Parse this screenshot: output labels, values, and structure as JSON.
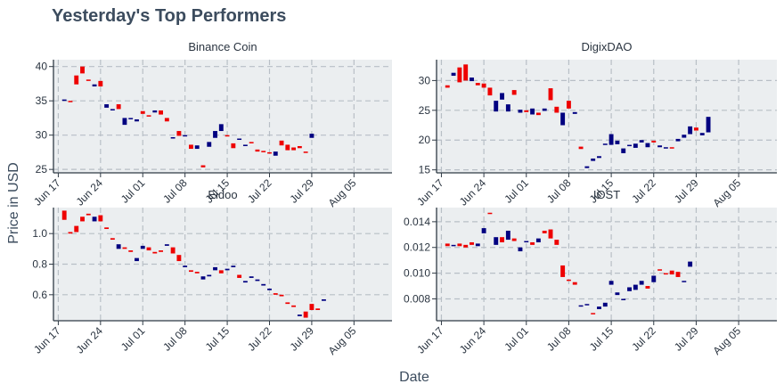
{
  "title": "Yesterday's Top Performers",
  "xlabel": "Date",
  "ylabel": "Price in USD",
  "colors": {
    "up": "#000080",
    "down": "#ee0000",
    "panel_bg": "#ebeef0",
    "grid": "#b8bfc6",
    "axis": "#2f3a45",
    "title": "#3c4c5e"
  },
  "x_ticks": [
    "Jun 17",
    "Jun 24",
    "Jul 01",
    "Jul 08",
    "Jul 15",
    "Jul 22",
    "Jul 29",
    "Aug 05"
  ],
  "chart_data": [
    {
      "type": "candlestick",
      "name": "Binance Coin",
      "x_start": "2018-06-18",
      "ylim": [
        24.5,
        41
      ],
      "yticks": [
        "25",
        "30",
        "35",
        "40"
      ],
      "ytick_values": [
        25,
        30,
        35,
        40
      ],
      "grid": true,
      "candles": [
        [
          35.0,
          35.2
        ],
        [
          35.0,
          34.8
        ],
        [
          38.7,
          37.4
        ],
        [
          40.0,
          39.0
        ],
        [
          38.1,
          37.9
        ],
        [
          37.1,
          37.4
        ],
        [
          37.9,
          37.1
        ],
        [
          34.0,
          34.5
        ],
        [
          33.6,
          33.8
        ],
        [
          34.5,
          33.8
        ],
        [
          31.5,
          32.5
        ],
        [
          32.4,
          32.5
        ],
        [
          32.0,
          32.3
        ],
        [
          33.5,
          33.1
        ],
        [
          32.9,
          32.7
        ],
        [
          33.3,
          33.6
        ],
        [
          33.6,
          33.0
        ],
        [
          32.5,
          32.0
        ],
        [
          29.5,
          29.7
        ],
        [
          30.6,
          29.9
        ],
        [
          30.0,
          30.0
        ],
        [
          28.6,
          28.0
        ],
        [
          28.0,
          28.5
        ],
        [
          25.6,
          25.3
        ],
        [
          28.3,
          29.0
        ],
        [
          29.6,
          30.6
        ],
        [
          30.6,
          31.6
        ],
        [
          30.0,
          29.8
        ],
        [
          28.8,
          28.1
        ],
        [
          29.4,
          29.5
        ],
        [
          28.4,
          28.6
        ],
        [
          29.0,
          28.8
        ],
        [
          27.9,
          27.6
        ],
        [
          27.7,
          27.5
        ],
        [
          27.5,
          27.4
        ],
        [
          27.0,
          27.6
        ],
        [
          29.2,
          28.5
        ],
        [
          28.6,
          27.8
        ],
        [
          28.2,
          27.8
        ],
        [
          28.4,
          28.1
        ],
        [
          27.6,
          27.4
        ],
        [
          29.6,
          30.2
        ]
      ]
    },
    {
      "type": "candlestick",
      "name": "DigixDAO",
      "x_start": "2018-06-18",
      "ylim": [
        14.5,
        33.5
      ],
      "yticks": [
        "15",
        "20",
        "25",
        "30"
      ],
      "ytick_values": [
        15,
        20,
        25,
        30
      ],
      "grid": true,
      "candles": [
        [
          29.2,
          28.8
        ],
        [
          30.8,
          31.3
        ],
        [
          32.2,
          29.7
        ],
        [
          32.7,
          30.0
        ],
        [
          29.9,
          30.5
        ],
        [
          29.6,
          29.2
        ],
        [
          29.5,
          28.8
        ],
        [
          28.8,
          27.5
        ],
        [
          24.8,
          26.6
        ],
        [
          26.8,
          27.9
        ],
        [
          24.8,
          26.0
        ],
        [
          28.4,
          27.6
        ],
        [
          24.6,
          25.1
        ],
        [
          25.0,
          24.7
        ],
        [
          24.3,
          25.3
        ],
        [
          24.6,
          24.2
        ],
        [
          24.9,
          25.3
        ],
        [
          28.7,
          26.7
        ],
        [
          25.6,
          24.6
        ],
        [
          22.5,
          24.6
        ],
        [
          26.6,
          25.3
        ],
        [
          24.4,
          24.7
        ],
        [
          18.9,
          18.5
        ],
        [
          15.3,
          15.6
        ],
        [
          16.5,
          16.9
        ],
        [
          17.0,
          17.3
        ],
        [
          19.2,
          19.4
        ],
        [
          19.2,
          21.0
        ],
        [
          19.3,
          19.9
        ],
        [
          17.8,
          18.6
        ],
        [
          19.1,
          19.2
        ],
        [
          18.7,
          19.4
        ],
        [
          19.6,
          20.0
        ],
        [
          18.8,
          19.5
        ],
        [
          19.9,
          19.6
        ],
        [
          18.8,
          19.1
        ],
        [
          18.7,
          18.8
        ],
        [
          18.8,
          18.7
        ],
        [
          19.8,
          20.2
        ],
        [
          20.4,
          20.9
        ],
        [
          21.0,
          22.3
        ],
        [
          22.1,
          21.6
        ],
        [
          20.8,
          21.2
        ],
        [
          21.3,
          23.9
        ]
      ]
    },
    {
      "type": "candlestick",
      "name": "Eidoo",
      "x_start": "2018-06-18",
      "ylim": [
        0.43,
        1.17
      ],
      "yticks": [
        "0.6",
        "0.8",
        "1.0"
      ],
      "ytick_values": [
        0.6,
        0.8,
        1.0
      ],
      "grid": true,
      "candles": [
        [
          1.15,
          1.09
        ],
        [
          1.01,
          1.0
        ],
        [
          1.05,
          1.01
        ],
        [
          1.11,
          1.08
        ],
        [
          1.13,
          1.12
        ],
        [
          1.08,
          1.11
        ],
        [
          1.12,
          1.08
        ],
        [
          1.04,
          1.03
        ],
        [
          0.97,
          0.96
        ],
        [
          0.9,
          0.93
        ],
        [
          0.91,
          0.9
        ],
        [
          0.89,
          0.88
        ],
        [
          0.82,
          0.84
        ],
        [
          0.9,
          0.92
        ],
        [
          0.91,
          0.89
        ],
        [
          0.88,
          0.87
        ],
        [
          0.89,
          0.88
        ],
        [
          0.92,
          0.93
        ],
        [
          0.91,
          0.87
        ],
        [
          0.86,
          0.82
        ],
        [
          0.78,
          0.79
        ],
        [
          0.76,
          0.75
        ],
        [
          0.75,
          0.74
        ],
        [
          0.7,
          0.72
        ],
        [
          0.72,
          0.73
        ],
        [
          0.76,
          0.78
        ],
        [
          0.76,
          0.74
        ],
        [
          0.76,
          0.77
        ],
        [
          0.78,
          0.79
        ],
        [
          0.73,
          0.71
        ],
        [
          0.68,
          0.69
        ],
        [
          0.71,
          0.72
        ],
        [
          0.69,
          0.7
        ],
        [
          0.66,
          0.67
        ],
        [
          0.63,
          0.64
        ],
        [
          0.61,
          0.6
        ],
        [
          0.6,
          0.59
        ],
        [
          0.55,
          0.54
        ],
        [
          0.53,
          0.52
        ],
        [
          0.46,
          0.47
        ],
        [
          0.49,
          0.45
        ],
        [
          0.54,
          0.5
        ],
        [
          0.51,
          0.5
        ],
        [
          0.56,
          0.57
        ]
      ]
    },
    {
      "type": "candlestick",
      "name": "IOST",
      "x_start": "2018-06-18",
      "ylim": [
        0.0063,
        0.0151
      ],
      "yticks": [
        "0.008",
        "0.010",
        "0.012",
        "0.014"
      ],
      "ytick_values": [
        0.008,
        0.01,
        0.012,
        0.014
      ],
      "grid": true,
      "candles": [
        [
          0.0123,
          0.0121
        ],
        [
          0.0121,
          0.0122
        ],
        [
          0.0123,
          0.0121
        ],
        [
          0.0122,
          0.012
        ],
        [
          0.0124,
          0.0122
        ],
        [
          0.0121,
          0.0123
        ],
        [
          0.0131,
          0.0135
        ],
        [
          0.0147,
          0.0146
        ],
        [
          0.0122,
          0.0128
        ],
        [
          0.0128,
          0.0124
        ],
        [
          0.0126,
          0.0133
        ],
        [
          0.0127,
          0.0125
        ],
        [
          0.0117,
          0.012
        ],
        [
          0.0124,
          0.0125
        ],
        [
          0.0124,
          0.0122
        ],
        [
          0.0124,
          0.0127
        ],
        [
          0.0133,
          0.0131
        ],
        [
          0.0134,
          0.0127
        ],
        [
          0.0126,
          0.0122
        ],
        [
          0.0106,
          0.0097
        ],
        [
          0.0095,
          0.0094
        ],
        [
          0.0093,
          0.0091
        ],
        [
          0.0074,
          0.0075
        ],
        [
          0.0076,
          0.0076
        ],
        [
          0.0069,
          0.0068
        ],
        [
          0.0072,
          0.0074
        ],
        [
          0.0074,
          0.0077
        ],
        [
          0.0091,
          0.0094
        ],
        [
          0.0083,
          0.0085
        ],
        [
          0.0079,
          0.008
        ],
        [
          0.0086,
          0.0089
        ],
        [
          0.0087,
          0.0091
        ],
        [
          0.0091,
          0.0094
        ],
        [
          0.009,
          0.0088
        ],
        [
          0.0093,
          0.0098
        ],
        [
          0.0103,
          0.0102
        ],
        [
          0.01,
          0.0099
        ],
        [
          0.0102,
          0.0099
        ],
        [
          0.0101,
          0.0097
        ],
        [
          0.0093,
          0.0094
        ],
        [
          0.0105,
          0.0109
        ]
      ]
    }
  ]
}
